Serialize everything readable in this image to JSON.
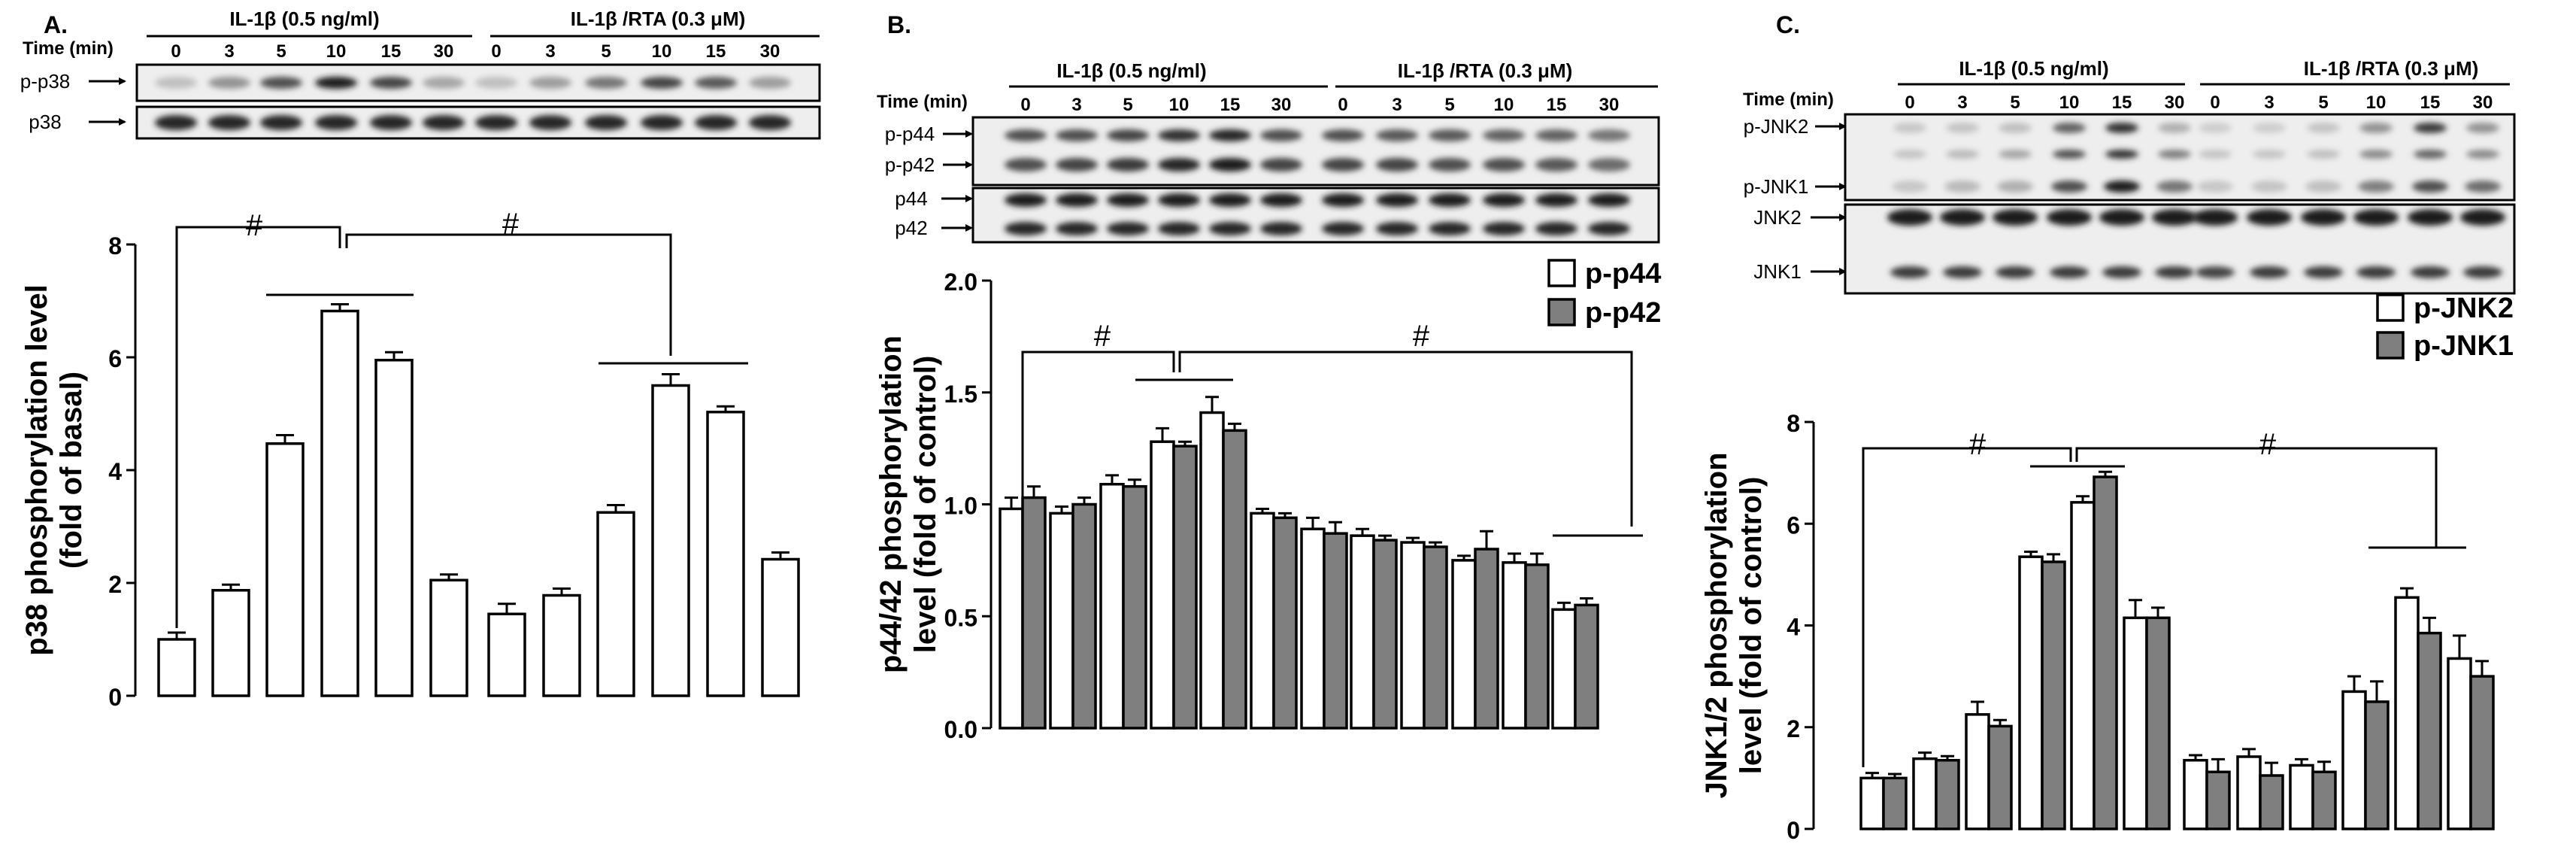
{
  "figure": {
    "panels": [
      {
        "letter": "A.",
        "group_labels": [
          "IL-1β (0.5 ng/ml)",
          "IL-1β /RTA (0.3 μM)"
        ],
        "time_label": "Time (min)",
        "time_points": [
          "0",
          "3",
          "5",
          "10",
          "15",
          "30",
          "0",
          "3",
          "5",
          "10",
          "15",
          "30"
        ],
        "blot_labels": [
          "p-p38",
          "p38"
        ]
      },
      {
        "letter": "B.",
        "group_labels": [
          "IL-1β (0.5 ng/ml)",
          "IL-1β /RTA (0.3 μM)"
        ],
        "time_label": "Time (min)",
        "time_points": [
          "0",
          "3",
          "5",
          "10",
          "15",
          "30",
          "0",
          "3",
          "5",
          "10",
          "15",
          "30"
        ],
        "blot_labels": [
          "p-p44",
          "p-p42",
          "p44",
          "p42"
        ]
      },
      {
        "letter": "C.",
        "group_labels": [
          "IL-1β (0.5 ng/ml)",
          "IL-1β /RTA (0.3 μM)"
        ],
        "time_label": "Time (min)",
        "time_points": [
          "0",
          "3",
          "5",
          "10",
          "15",
          "30",
          "0",
          "3",
          "5",
          "10",
          "15",
          "30"
        ],
        "blot_labels": [
          "p-JNK2",
          "p-JNK1",
          "JNK2",
          "JNK1"
        ]
      }
    ],
    "significance_mark": "#"
  },
  "colors": {
    "open_bar": "#ffffff",
    "gray_bar": "#7f7f7f",
    "ink": "#000000"
  },
  "chart_data": [
    {
      "type": "bar",
      "ylabel": "p38 phosphorylation level\n(fold of basal)",
      "ylim": [
        0,
        8
      ],
      "yticks": [
        "0",
        "2",
        "4",
        "6",
        "8"
      ],
      "series": [
        {
          "values": [
            1.0,
            1.87,
            4.47,
            6.82,
            5.95,
            2.05,
            1.45,
            1.78,
            3.25,
            5.5,
            5.03,
            2.42
          ],
          "errors": [
            0.12,
            0.1,
            0.15,
            0.12,
            0.14,
            0.1,
            0.18,
            0.12,
            0.13,
            0.2,
            0.1,
            0.12
          ]
        }
      ]
    },
    {
      "type": "bar",
      "ylabel": "p44/42 phosphorylation\nlevel (fold of control)",
      "ylim": [
        0,
        2.0
      ],
      "yticks": [
        "0.0",
        "0.5",
        "1.0",
        "1.5",
        "2.0"
      ],
      "legend": [
        "p-p44",
        "p-p42"
      ],
      "series": [
        {
          "name": "p-p44",
          "values": [
            0.98,
            0.96,
            1.09,
            1.28,
            1.41,
            0.96,
            0.89,
            0.86,
            0.83,
            0.75,
            0.74,
            0.53
          ],
          "errors": [
            0.05,
            0.03,
            0.04,
            0.06,
            0.07,
            0.02,
            0.05,
            0.03,
            0.02,
            0.02,
            0.04,
            0.03
          ]
        },
        {
          "name": "p-p42",
          "values": [
            1.03,
            1.0,
            1.08,
            1.26,
            1.33,
            0.94,
            0.87,
            0.84,
            0.81,
            0.8,
            0.73,
            0.55
          ],
          "errors": [
            0.05,
            0.03,
            0.03,
            0.02,
            0.03,
            0.02,
            0.05,
            0.02,
            0.02,
            0.08,
            0.05,
            0.03
          ]
        }
      ]
    },
    {
      "type": "bar",
      "ylabel": "JNK1/2 phosphorylation\nlevel (fold of control)",
      "ylim": [
        0,
        8
      ],
      "yticks": [
        "0",
        "2",
        "4",
        "6",
        "8"
      ],
      "legend": [
        "p-JNK2",
        "p-JNK1"
      ],
      "series": [
        {
          "name": "p-JNK2",
          "values": [
            1.0,
            1.38,
            2.25,
            5.35,
            6.42,
            4.15,
            1.35,
            1.42,
            1.25,
            2.7,
            4.55,
            3.35
          ],
          "errors": [
            0.1,
            0.12,
            0.25,
            0.1,
            0.12,
            0.35,
            0.1,
            0.15,
            0.12,
            0.3,
            0.18,
            0.45
          ]
        },
        {
          "name": "p-JNK1",
          "values": [
            1.0,
            1.35,
            2.02,
            5.25,
            6.92,
            4.15,
            1.12,
            1.05,
            1.12,
            2.5,
            3.85,
            3.0
          ],
          "errors": [
            0.08,
            0.08,
            0.12,
            0.15,
            0.1,
            0.2,
            0.25,
            0.25,
            0.2,
            0.4,
            0.3,
            0.3
          ]
        }
      ]
    }
  ]
}
